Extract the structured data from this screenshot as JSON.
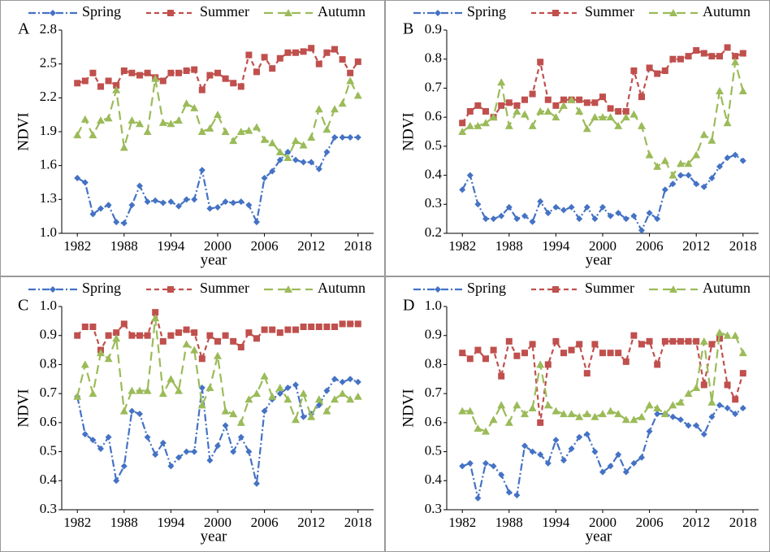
{
  "chart_data": [
    {
      "type": "line",
      "label": "A",
      "y_label": "NDVI",
      "x_label": "year",
      "x": [
        1982,
        1983,
        1984,
        1985,
        1986,
        1987,
        1988,
        1989,
        1990,
        1991,
        1992,
        1993,
        1994,
        1995,
        1996,
        1997,
        1998,
        1999,
        2000,
        2001,
        2002,
        2003,
        2004,
        2005,
        2006,
        2007,
        2008,
        2009,
        2010,
        2011,
        2012,
        2013,
        2014,
        2015,
        2016,
        2017,
        2018
      ],
      "xlim": [
        1980,
        2020
      ],
      "xticks": [
        1982,
        1988,
        1994,
        2000,
        2006,
        2012,
        2018
      ],
      "ylim": [
        1.0,
        2.8
      ],
      "yticks": [
        {
          "value": 1,
          "label": "1.0"
        },
        1.3,
        1.6,
        1.9,
        2.2,
        2.5,
        2.8
      ],
      "series": [
        {
          "name": "Spring",
          "color": "#4472c4",
          "marker": "diamond",
          "values": [
            1.49,
            1.45,
            1.17,
            1.22,
            1.25,
            1.1,
            1.09,
            1.25,
            1.42,
            1.28,
            1.29,
            1.27,
            1.28,
            1.24,
            1.3,
            1.3,
            1.56,
            1.22,
            1.23,
            1.28,
            1.27,
            1.28,
            1.25,
            1.1,
            1.49,
            1.55,
            1.65,
            1.72,
            1.65,
            1.63,
            1.63,
            1.57,
            1.72,
            1.85,
            1.85,
            1.85,
            1.85
          ]
        },
        {
          "name": "Summer",
          "color": "#c0504d",
          "marker": "square",
          "values": [
            2.33,
            2.35,
            2.42,
            2.3,
            2.35,
            2.31,
            2.44,
            2.42,
            2.4,
            2.42,
            2.38,
            2.35,
            2.42,
            2.42,
            2.44,
            2.45,
            2.27,
            2.4,
            2.42,
            2.37,
            2.33,
            2.3,
            2.58,
            2.43,
            2.56,
            2.46,
            2.55,
            2.6,
            2.6,
            2.61,
            2.64,
            2.5,
            2.6,
            2.63,
            2.54,
            2.42,
            2.52
          ]
        },
        {
          "name": "Autumn",
          "color": "#9bbb59",
          "marker": "triangle",
          "values": [
            1.87,
            2.01,
            1.87,
            2.0,
            2.02,
            2.27,
            1.76,
            2.0,
            1.97,
            1.9,
            2.37,
            1.98,
            1.97,
            2.0,
            2.15,
            2.11,
            1.9,
            1.93,
            2.05,
            1.9,
            1.82,
            1.9,
            1.91,
            1.94,
            1.83,
            1.8,
            1.72,
            1.67,
            1.82,
            1.78,
            1.85,
            2.1,
            1.92,
            2.1,
            2.15,
            2.35,
            2.22
          ]
        }
      ]
    },
    {
      "type": "line",
      "label": "B",
      "y_label": "NDVI",
      "x_label": "year",
      "x": [
        1982,
        1983,
        1984,
        1985,
        1986,
        1987,
        1988,
        1989,
        1990,
        1991,
        1992,
        1993,
        1994,
        1995,
        1996,
        1997,
        1998,
        1999,
        2000,
        2001,
        2002,
        2003,
        2004,
        2005,
        2006,
        2007,
        2008,
        2009,
        2010,
        2011,
        2012,
        2013,
        2014,
        2015,
        2016,
        2017,
        2018
      ],
      "xlim": [
        1980,
        2020
      ],
      "xticks": [
        1982,
        1988,
        1994,
        2000,
        2006,
        2012,
        2018
      ],
      "ylim": [
        0.2,
        0.9
      ],
      "yticks": [
        0.2,
        0.3,
        0.4,
        0.5,
        0.6,
        0.7,
        0.8,
        0.9
      ],
      "series": [
        {
          "name": "Spring",
          "color": "#4472c4",
          "marker": "diamond",
          "values": [
            0.35,
            0.4,
            0.3,
            0.25,
            0.25,
            0.26,
            0.29,
            0.25,
            0.26,
            0.24,
            0.31,
            0.27,
            0.29,
            0.28,
            0.29,
            0.25,
            0.29,
            0.25,
            0.29,
            0.26,
            0.27,
            0.25,
            0.26,
            0.21,
            0.27,
            0.25,
            0.35,
            0.37,
            0.4,
            0.4,
            0.37,
            0.36,
            0.39,
            0.43,
            0.46,
            0.47,
            0.45
          ]
        },
        {
          "name": "Summer",
          "color": "#c0504d",
          "marker": "square",
          "values": [
            0.58,
            0.62,
            0.64,
            0.62,
            0.6,
            0.64,
            0.65,
            0.64,
            0.66,
            0.68,
            0.79,
            0.66,
            0.64,
            0.66,
            0.66,
            0.66,
            0.65,
            0.65,
            0.67,
            0.63,
            0.62,
            0.62,
            0.76,
            0.67,
            0.77,
            0.75,
            0.76,
            0.8,
            0.8,
            0.81,
            0.83,
            0.82,
            0.81,
            0.81,
            0.84,
            0.81,
            0.82
          ]
        },
        {
          "name": "Autumn",
          "color": "#9bbb59",
          "marker": "triangle",
          "values": [
            0.55,
            0.57,
            0.57,
            0.58,
            0.6,
            0.72,
            0.57,
            0.62,
            0.61,
            0.57,
            0.62,
            0.62,
            0.6,
            0.64,
            0.66,
            0.62,
            0.56,
            0.6,
            0.6,
            0.6,
            0.57,
            0.6,
            0.61,
            0.57,
            0.47,
            0.43,
            0.45,
            0.4,
            0.44,
            0.44,
            0.47,
            0.54,
            0.52,
            0.69,
            0.58,
            0.79,
            0.69
          ]
        }
      ]
    },
    {
      "type": "line",
      "label": "C",
      "y_label": "NDVI",
      "x_label": "year",
      "x": [
        1982,
        1983,
        1984,
        1985,
        1986,
        1987,
        1988,
        1989,
        1990,
        1991,
        1992,
        1993,
        1994,
        1995,
        1996,
        1997,
        1998,
        1999,
        2000,
        2001,
        2002,
        2003,
        2004,
        2005,
        2006,
        2007,
        2008,
        2009,
        2010,
        2011,
        2012,
        2013,
        2014,
        2015,
        2016,
        2017,
        2018
      ],
      "xlim": [
        1980,
        2020
      ],
      "xticks": [
        1982,
        1988,
        1994,
        2000,
        2006,
        2012,
        2018
      ],
      "ylim": [
        0.3,
        1.0
      ],
      "yticks": [
        0.3,
        0.4,
        0.5,
        0.6,
        0.7,
        0.8,
        0.9,
        {
          "value": 1,
          "label": "1.0"
        }
      ],
      "series": [
        {
          "name": "Spring",
          "color": "#4472c4",
          "marker": "diamond",
          "values": [
            0.69,
            0.56,
            0.54,
            0.51,
            0.55,
            0.4,
            0.45,
            0.64,
            0.63,
            0.55,
            0.49,
            0.53,
            0.45,
            0.48,
            0.5,
            0.5,
            0.72,
            0.47,
            0.52,
            0.59,
            0.5,
            0.55,
            0.5,
            0.39,
            0.64,
            0.68,
            0.7,
            0.72,
            0.73,
            0.62,
            0.63,
            0.66,
            0.71,
            0.75,
            0.74,
            0.75,
            0.74
          ]
        },
        {
          "name": "Summer",
          "color": "#c0504d",
          "marker": "square",
          "values": [
            0.9,
            0.93,
            0.93,
            0.85,
            0.9,
            0.91,
            0.94,
            0.9,
            0.9,
            0.9,
            0.98,
            0.88,
            0.9,
            0.91,
            0.92,
            0.91,
            0.82,
            0.9,
            0.88,
            0.9,
            0.88,
            0.86,
            0.91,
            0.89,
            0.92,
            0.92,
            0.91,
            0.92,
            0.92,
            0.93,
            0.93,
            0.93,
            0.93,
            0.93,
            0.94,
            0.94,
            0.94
          ]
        },
        {
          "name": "Autumn",
          "color": "#9bbb59",
          "marker": "triangle",
          "values": [
            0.69,
            0.8,
            0.7,
            0.84,
            0.82,
            0.89,
            0.64,
            0.71,
            0.71,
            0.71,
            0.96,
            0.7,
            0.75,
            0.71,
            0.87,
            0.85,
            0.66,
            0.72,
            0.83,
            0.64,
            0.63,
            0.6,
            0.68,
            0.7,
            0.76,
            0.69,
            0.72,
            0.68,
            0.61,
            0.7,
            0.62,
            0.68,
            0.64,
            0.68,
            0.7,
            0.68,
            0.69
          ]
        }
      ]
    },
    {
      "type": "line",
      "label": "D",
      "y_label": "NDVI",
      "x_label": "year",
      "x": [
        1982,
        1983,
        1984,
        1985,
        1986,
        1987,
        1988,
        1989,
        1990,
        1991,
        1992,
        1993,
        1994,
        1995,
        1996,
        1997,
        1998,
        1999,
        2000,
        2001,
        2002,
        2003,
        2004,
        2005,
        2006,
        2007,
        2008,
        2009,
        2010,
        2011,
        2012,
        2013,
        2014,
        2015,
        2016,
        2017,
        2018
      ],
      "xlim": [
        1980,
        2020
      ],
      "xticks": [
        1982,
        1988,
        1994,
        2000,
        2006,
        2012,
        2018
      ],
      "ylim": [
        0.3,
        1.0
      ],
      "yticks": [
        0.3,
        0.4,
        0.5,
        0.6,
        0.7,
        0.8,
        0.9,
        {
          "value": 1,
          "label": "1.0"
        }
      ],
      "series": [
        {
          "name": "Spring",
          "color": "#4472c4",
          "marker": "diamond",
          "values": [
            0.45,
            0.46,
            0.34,
            0.46,
            0.45,
            0.42,
            0.36,
            0.35,
            0.52,
            0.5,
            0.49,
            0.46,
            0.54,
            0.47,
            0.51,
            0.55,
            0.56,
            0.5,
            0.43,
            0.45,
            0.49,
            0.43,
            0.46,
            0.48,
            0.57,
            0.63,
            0.63,
            0.62,
            0.61,
            0.59,
            0.59,
            0.56,
            0.62,
            0.66,
            0.65,
            0.63,
            0.65
          ]
        },
        {
          "name": "Summer",
          "color": "#c0504d",
          "marker": "square",
          "values": [
            0.84,
            0.82,
            0.85,
            0.82,
            0.85,
            0.76,
            0.88,
            0.83,
            0.84,
            0.87,
            0.6,
            0.8,
            0.88,
            0.84,
            0.85,
            0.87,
            0.77,
            0.87,
            0.84,
            0.84,
            0.84,
            0.81,
            0.9,
            0.87,
            0.88,
            0.8,
            0.88,
            0.88,
            0.88,
            0.88,
            0.88,
            0.73,
            0.87,
            0.89,
            0.73,
            0.68,
            0.77
          ]
        },
        {
          "name": "Autumn",
          "color": "#9bbb59",
          "marker": "triangle",
          "values": [
            0.64,
            0.64,
            0.58,
            0.57,
            0.61,
            0.66,
            0.6,
            0.66,
            0.63,
            0.65,
            0.8,
            0.66,
            0.64,
            0.63,
            0.63,
            0.62,
            0.63,
            0.62,
            0.63,
            0.64,
            0.63,
            0.61,
            0.61,
            0.62,
            0.66,
            0.65,
            0.63,
            0.66,
            0.67,
            0.7,
            0.72,
            0.88,
            0.67,
            0.91,
            0.9,
            0.9,
            0.84
          ]
        }
      ]
    }
  ]
}
